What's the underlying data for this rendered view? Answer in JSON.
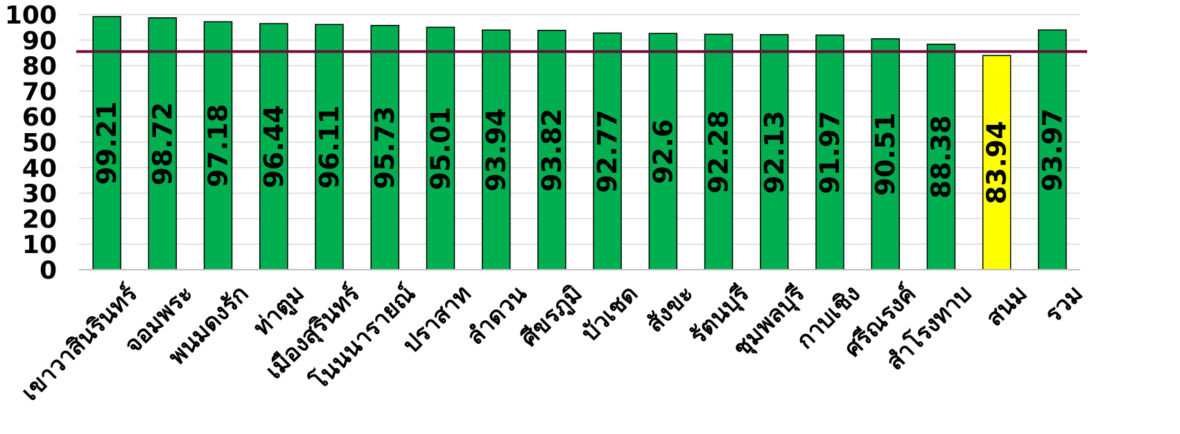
{
  "chart_data": {
    "type": "bar",
    "title": "",
    "xlabel": "",
    "ylabel": "",
    "ylim": [
      0,
      100
    ],
    "yticks": [
      0,
      10,
      20,
      30,
      40,
      50,
      60,
      70,
      80,
      90,
      100
    ],
    "grid": true,
    "categories": [
      "เขาวาสินรินทร์",
      "จอมพระ",
      "พนมดงรัก",
      "ท่าตูม",
      "เมืองสุรินทร์",
      "โนนนารายณ์",
      "ปราสาท",
      "ลำดวน",
      "ศีขรภูมิ",
      "บัวเชด",
      "สังขะ",
      "รัตนบุรี",
      "ชุมพลบุรี",
      "กาบเชิง",
      "ศรีณรงค์",
      "สำโรงทาบ",
      "สนม",
      "รวม"
    ],
    "values": [
      99.21,
      98.72,
      97.18,
      96.44,
      96.11,
      95.73,
      95.01,
      93.94,
      93.82,
      92.77,
      92.6,
      92.28,
      92.13,
      91.97,
      90.51,
      88.38,
      83.94,
      93.97
    ],
    "value_labels": [
      "99.21",
      "98.72",
      "97.18",
      "96.44",
      "96.11",
      "95.73",
      "95.01",
      "93.94",
      "93.82",
      "92.77",
      "92.6",
      "92.28",
      "92.13",
      "91.97",
      "90.51",
      "88.38",
      "83.94",
      "93.97"
    ],
    "bar_colors": [
      "#00b050",
      "#00b050",
      "#00b050",
      "#00b050",
      "#00b050",
      "#00b050",
      "#00b050",
      "#00b050",
      "#00b050",
      "#00b050",
      "#00b050",
      "#00b050",
      "#00b050",
      "#00b050",
      "#00b050",
      "#00b050",
      "#ffff00",
      "#00b050"
    ],
    "target_line": {
      "value": 85.5,
      "color": "#6b0f3a"
    },
    "bar_outline_color": "#000000"
  }
}
